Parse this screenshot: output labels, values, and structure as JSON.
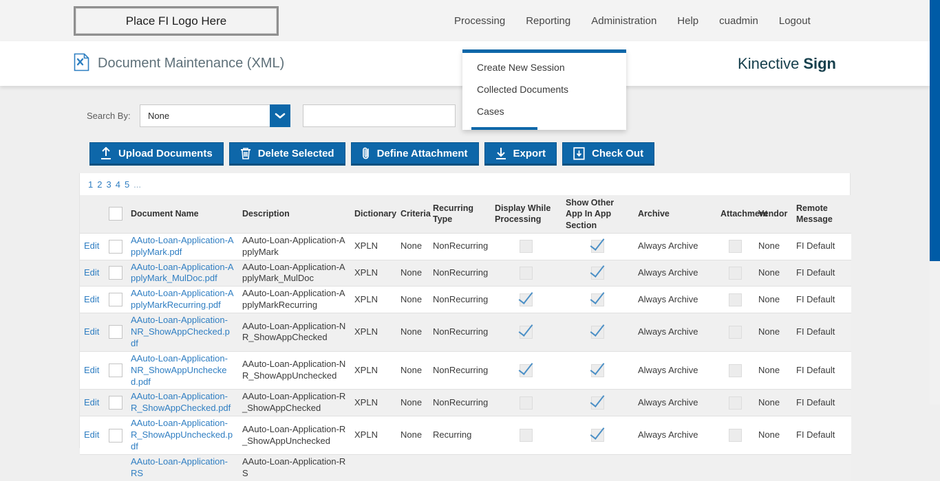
{
  "header": {
    "logo_placeholder": "Place FI Logo Here",
    "nav": [
      "Processing",
      "Reporting",
      "Administration",
      "Help",
      "cuadmin",
      "Logout"
    ]
  },
  "processing_menu": {
    "items": [
      "Create New Session",
      "Collected Documents",
      "Cases"
    ],
    "active_item": "Cases"
  },
  "title_bar": {
    "page_title": "Document Maintenance (XML)",
    "brand_name": "Kinective",
    "brand_suffix": "Sign"
  },
  "search": {
    "label": "Search By:",
    "selected_option": "None",
    "input_value": "",
    "input_placeholder": ""
  },
  "toolbar": {
    "buttons": [
      {
        "label": "Upload Documents",
        "icon": "upload-icon"
      },
      {
        "label": "Delete Selected",
        "icon": "trash-icon"
      },
      {
        "label": "Define Attachment",
        "icon": "paperclip-icon"
      },
      {
        "label": "Export",
        "icon": "export-icon"
      },
      {
        "label": "Check Out",
        "icon": "checkout-icon"
      }
    ]
  },
  "pagination": {
    "pages": [
      "1",
      "2",
      "3",
      "4",
      "5"
    ],
    "ellipsis": "..."
  },
  "table": {
    "columns": [
      "Document Name",
      "Description",
      "Dictionary",
      "Criteria",
      "Recurring Type",
      "Display While Processing",
      "Show Other App In App Section",
      "Archive",
      "Attachment",
      "Vendor",
      "Remote Message"
    ],
    "rows": [
      {
        "edit": "Edit",
        "name": "AAuto-Loan-Application-ApplyMark.pdf",
        "description": "AAuto-Loan-Application-ApplyMark",
        "dictionary": "XPLN",
        "criteria": "None",
        "recurring_type": "NonRecurring",
        "display_while_processing": false,
        "show_other_app": true,
        "archive": "Always Archive",
        "attachment": false,
        "vendor": "None",
        "remote_message": "FI Default"
      },
      {
        "edit": "Edit",
        "name": "AAuto-Loan-Application-ApplyMark_MulDoc.pdf",
        "description": "AAuto-Loan-Application-ApplyMark_MulDoc",
        "dictionary": "XPLN",
        "criteria": "None",
        "recurring_type": "NonRecurring",
        "display_while_processing": false,
        "show_other_app": true,
        "archive": "Always Archive",
        "attachment": false,
        "vendor": "None",
        "remote_message": "FI Default"
      },
      {
        "edit": "Edit",
        "name": "AAuto-Loan-Application-ApplyMarkRecurring.pdf",
        "description": "AAuto-Loan-Application-ApplyMarkRecurring",
        "dictionary": "XPLN",
        "criteria": "None",
        "recurring_type": "NonRecurring",
        "display_while_processing": true,
        "show_other_app": true,
        "archive": "Always Archive",
        "attachment": false,
        "vendor": "None",
        "remote_message": "FI Default"
      },
      {
        "edit": "Edit",
        "name": "AAuto-Loan-Application-NR_ShowAppChecked.pdf",
        "description": "AAuto-Loan-Application-NR_ShowAppChecked",
        "dictionary": "XPLN",
        "criteria": "None",
        "recurring_type": "NonRecurring",
        "display_while_processing": true,
        "show_other_app": true,
        "archive": "Always Archive",
        "attachment": false,
        "vendor": "None",
        "remote_message": "FI Default"
      },
      {
        "edit": "Edit",
        "name": "AAuto-Loan-Application-NR_ShowAppUnchecked.pdf",
        "description": "AAuto-Loan-Application-NR_ShowAppUnchecked",
        "dictionary": "XPLN",
        "criteria": "None",
        "recurring_type": "NonRecurring",
        "display_while_processing": true,
        "show_other_app": true,
        "archive": "Always Archive",
        "attachment": false,
        "vendor": "None",
        "remote_message": "FI Default"
      },
      {
        "edit": "Edit",
        "name": "AAuto-Loan-Application-R_ShowAppChecked.pdf",
        "description": "AAuto-Loan-Application-R_ShowAppChecked",
        "dictionary": "XPLN",
        "criteria": "None",
        "recurring_type": "NonRecurring",
        "display_while_processing": false,
        "show_other_app": true,
        "archive": "Always Archive",
        "attachment": false,
        "vendor": "None",
        "remote_message": "FI Default"
      },
      {
        "edit": "Edit",
        "name": "AAuto-Loan-Application-R_ShowAppUnchecked.pdf",
        "description": "AAuto-Loan-Application-R_ShowAppUnchecked",
        "dictionary": "XPLN",
        "criteria": "None",
        "recurring_type": "Recurring",
        "display_while_processing": false,
        "show_other_app": true,
        "archive": "Always Archive",
        "attachment": false,
        "vendor": "None",
        "remote_message": "FI Default"
      },
      {
        "edit": "",
        "name": "AAuto-Loan-Application-RS",
        "description": "AAuto-Loan-Application-RS",
        "partial": true
      }
    ]
  },
  "colors": {
    "accent_blue": "#0d67a9",
    "link_blue": "#2f7ec2",
    "brand_teal": "#17404d",
    "check_blue": "#4a8fc6",
    "scrollbar_blue": "#005ba6"
  }
}
